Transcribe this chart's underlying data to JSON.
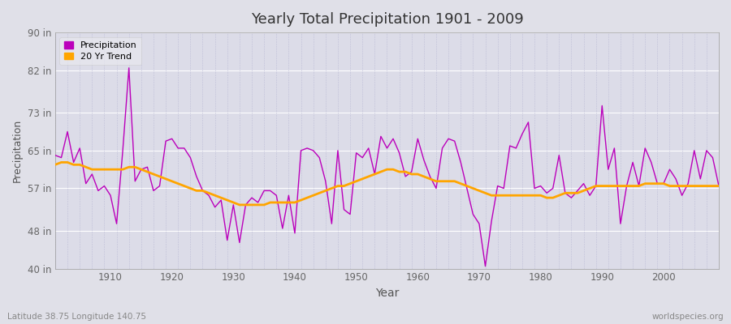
{
  "title": "Yearly Total Precipitation 1901 - 2009",
  "xlabel": "Year",
  "ylabel": "Precipitation",
  "bottom_left": "Latitude 38.75 Longitude 140.75",
  "bottom_right": "worldspecies.org",
  "ylim": [
    40,
    90
  ],
  "yticks": [
    40,
    48,
    57,
    65,
    73,
    82,
    90
  ],
  "ytick_labels": [
    "40 in",
    "48 in",
    "57 in",
    "65 in",
    "73 in",
    "82 in",
    "90 in"
  ],
  "xlim": [
    1901,
    2009
  ],
  "xticks": [
    1910,
    1920,
    1930,
    1940,
    1950,
    1960,
    1970,
    1980,
    1990,
    2000
  ],
  "precip_color": "#bb00bb",
  "trend_color": "#ffa500",
  "bg_color": "#e0e0e8",
  "plot_bg_color": "#dcdce8",
  "grid_color_h": "#ffffff",
  "grid_color_v": "#aaaacc",
  "years": [
    1901,
    1902,
    1903,
    1904,
    1905,
    1906,
    1907,
    1908,
    1909,
    1910,
    1911,
    1912,
    1913,
    1914,
    1915,
    1916,
    1917,
    1918,
    1919,
    1920,
    1921,
    1922,
    1923,
    1924,
    1925,
    1926,
    1927,
    1928,
    1929,
    1930,
    1931,
    1932,
    1933,
    1934,
    1935,
    1936,
    1937,
    1938,
    1939,
    1940,
    1941,
    1942,
    1943,
    1944,
    1945,
    1946,
    1947,
    1948,
    1949,
    1950,
    1951,
    1952,
    1953,
    1954,
    1955,
    1956,
    1957,
    1958,
    1959,
    1960,
    1961,
    1962,
    1963,
    1964,
    1965,
    1966,
    1967,
    1968,
    1969,
    1970,
    1971,
    1972,
    1973,
    1974,
    1975,
    1976,
    1977,
    1978,
    1979,
    1980,
    1981,
    1982,
    1983,
    1984,
    1985,
    1986,
    1987,
    1988,
    1989,
    1990,
    1991,
    1992,
    1993,
    1994,
    1995,
    1996,
    1997,
    1998,
    1999,
    2000,
    2001,
    2002,
    2003,
    2004,
    2005,
    2006,
    2007,
    2008,
    2009
  ],
  "precip": [
    64.0,
    63.5,
    69.0,
    62.5,
    65.5,
    58.0,
    60.0,
    56.5,
    57.5,
    55.5,
    49.5,
    65.0,
    82.5,
    58.5,
    61.0,
    61.5,
    56.5,
    57.5,
    67.0,
    67.5,
    65.5,
    65.5,
    63.5,
    59.5,
    56.5,
    55.5,
    53.0,
    54.5,
    46.0,
    53.5,
    45.5,
    53.5,
    55.0,
    54.0,
    56.5,
    56.5,
    55.5,
    48.5,
    55.5,
    47.5,
    65.0,
    65.5,
    65.0,
    63.5,
    58.5,
    49.5,
    65.0,
    52.5,
    51.5,
    64.5,
    63.5,
    65.5,
    60.0,
    68.0,
    65.5,
    67.5,
    64.5,
    59.5,
    60.5,
    67.5,
    63.0,
    59.5,
    57.0,
    65.5,
    67.5,
    67.0,
    62.5,
    57.0,
    51.5,
    49.5,
    40.5,
    50.0,
    57.5,
    57.0,
    66.0,
    65.5,
    68.5,
    71.0,
    57.0,
    57.5,
    56.0,
    57.0,
    64.0,
    56.0,
    55.0,
    56.5,
    58.0,
    55.5,
    57.5,
    74.5,
    61.0,
    65.5,
    49.5,
    57.5,
    62.5,
    57.5,
    65.5,
    62.5,
    58.0,
    58.0,
    61.0,
    59.0,
    55.5,
    58.0,
    65.0,
    59.0,
    65.0,
    63.5,
    57.5
  ],
  "trend": [
    62.0,
    62.5,
    62.5,
    62.0,
    62.0,
    61.5,
    61.0,
    61.0,
    61.0,
    61.0,
    61.0,
    61.0,
    61.5,
    61.5,
    61.0,
    60.5,
    60.0,
    59.5,
    59.0,
    58.5,
    58.0,
    57.5,
    57.0,
    56.5,
    56.5,
    56.0,
    55.5,
    55.0,
    54.5,
    54.0,
    53.5,
    53.5,
    53.5,
    53.5,
    53.5,
    54.0,
    54.0,
    54.0,
    54.0,
    54.0,
    54.5,
    55.0,
    55.5,
    56.0,
    56.5,
    57.0,
    57.5,
    57.5,
    58.0,
    58.5,
    59.0,
    59.5,
    60.0,
    60.5,
    61.0,
    61.0,
    60.5,
    60.5,
    60.0,
    60.0,
    59.5,
    59.0,
    58.5,
    58.5,
    58.5,
    58.5,
    58.0,
    57.5,
    57.0,
    56.5,
    56.0,
    55.5,
    55.5,
    55.5,
    55.5,
    55.5,
    55.5,
    55.5,
    55.5,
    55.5,
    55.0,
    55.0,
    55.5,
    56.0,
    56.0,
    56.0,
    56.5,
    57.0,
    57.5,
    57.5,
    57.5,
    57.5,
    57.5,
    57.5,
    57.5,
    57.5,
    58.0,
    58.0,
    58.0,
    58.0,
    57.5,
    57.5,
    57.5,
    57.5,
    57.5,
    57.5,
    57.5,
    57.5,
    57.5
  ]
}
